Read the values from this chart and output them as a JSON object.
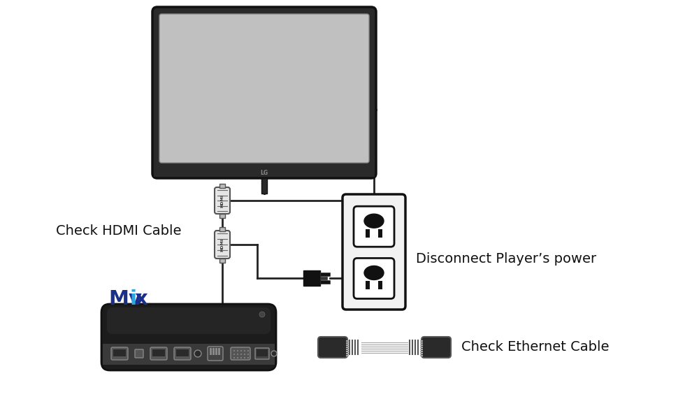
{
  "bg_color": "#ffffff",
  "labels": {
    "hdmi": "Check HDMI Cable",
    "power": "Disconnect Player’s power",
    "ethernet": "Check Ethernet Cable"
  },
  "colors": {
    "tv_bezel": "#2a2a2a",
    "tv_screen": "#c0c0c0",
    "cable": "#222222",
    "hdmi_body": "#e8e8e8",
    "hdmi_text": "#333333",
    "outlet_bg": "#f0f0f0",
    "outlet_border": "#111111",
    "socket_bg": "#ffffff",
    "socket_border": "#111111",
    "socket_dark": "#111111",
    "plug_dark": "#111111",
    "device_top": "#1a1a1a",
    "device_side": "#3d3d3d",
    "device_port": "#555555",
    "eth_dark": "#111111",
    "eth_wire": "#999999",
    "label": "#111111",
    "mvix_blue": "#1a2f8a",
    "mvix_cyan": "#29a9e0"
  },
  "figsize": [
    10.0,
    5.71
  ],
  "dpi": 100
}
